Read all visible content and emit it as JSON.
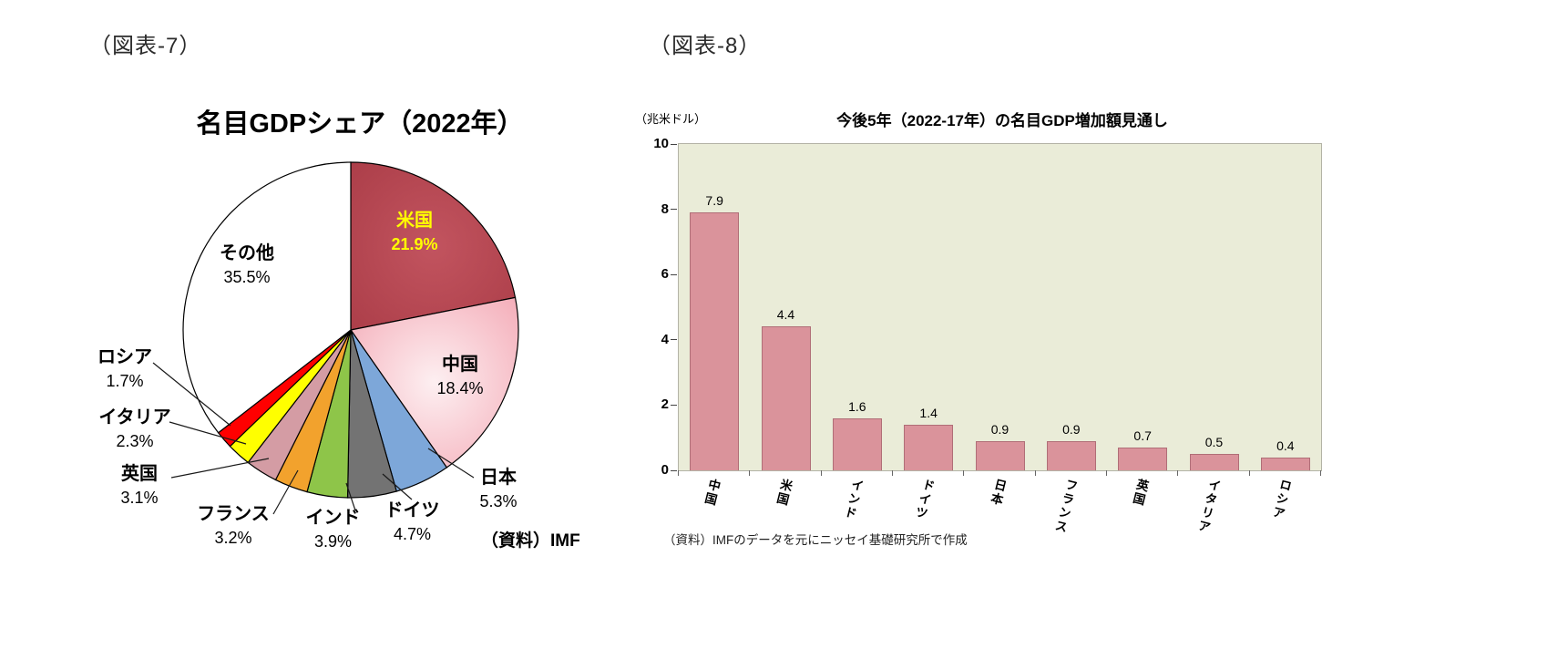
{
  "figures": {
    "fig7_label": "（図表-7）",
    "fig8_label": "（図表-8）"
  },
  "chart_data": [
    {
      "type": "pie",
      "title": "名目GDPシェア（2022年）",
      "source": "（資料）IMF",
      "start_angle_deg": 0,
      "direction": "clockwise",
      "labels": [
        "米国",
        "中国",
        "日本",
        "ドイツ",
        "インド",
        "フランス",
        "英国",
        "イタリア",
        "ロシア",
        "その他"
      ],
      "values": [
        21.9,
        18.4,
        5.3,
        4.7,
        3.9,
        3.2,
        3.1,
        2.3,
        1.7,
        35.5
      ],
      "display_values": [
        "21.9%",
        "18.4%",
        "5.3%",
        "4.7%",
        "3.9%",
        "3.2%",
        "3.1%",
        "2.3%",
        "1.7%",
        "35.5%"
      ],
      "colors": [
        {
          "type": "radial",
          "from": "#c2545f",
          "to": "#a93b46"
        },
        {
          "type": "radial",
          "from": "#fdeff1",
          "to": "#f3a4b1"
        },
        "#7da7d9",
        "#737373",
        "#8ec549",
        "#f2a22d",
        "#d49ca4",
        "#ffff00",
        "#ff0000",
        "#ffffff"
      ],
      "us_label_color": "#ffff00",
      "outline_color": "#000000"
    },
    {
      "type": "bar",
      "title": "今後5年（2022-17年）の名目GDP増加額見通し",
      "unit_label": "（兆米ドル）",
      "source": "（資料）IMFのデータを元にニッセイ基礎研究所で作成",
      "categories": [
        "中国",
        "米国",
        "インド",
        "ドイツ",
        "日本",
        "フランス",
        "英国",
        "イタリア",
        "ロシア"
      ],
      "values": [
        7.9,
        4.4,
        1.6,
        1.4,
        0.9,
        0.9,
        0.7,
        0.5,
        0.4
      ],
      "display_values": [
        "7.9",
        "4.4",
        "1.6",
        "1.4",
        "0.9",
        "0.9",
        "0.7",
        "0.5",
        "0.4"
      ],
      "ylim": [
        0,
        10
      ],
      "yticks": [
        0,
        2,
        4,
        6,
        8,
        10
      ],
      "grid": false,
      "legend": "none",
      "bar_color": "#da939b",
      "bar_border_color": "#b06e77",
      "plot_bg": "#eaecd8",
      "plot_border": "#b3b3a6"
    }
  ]
}
